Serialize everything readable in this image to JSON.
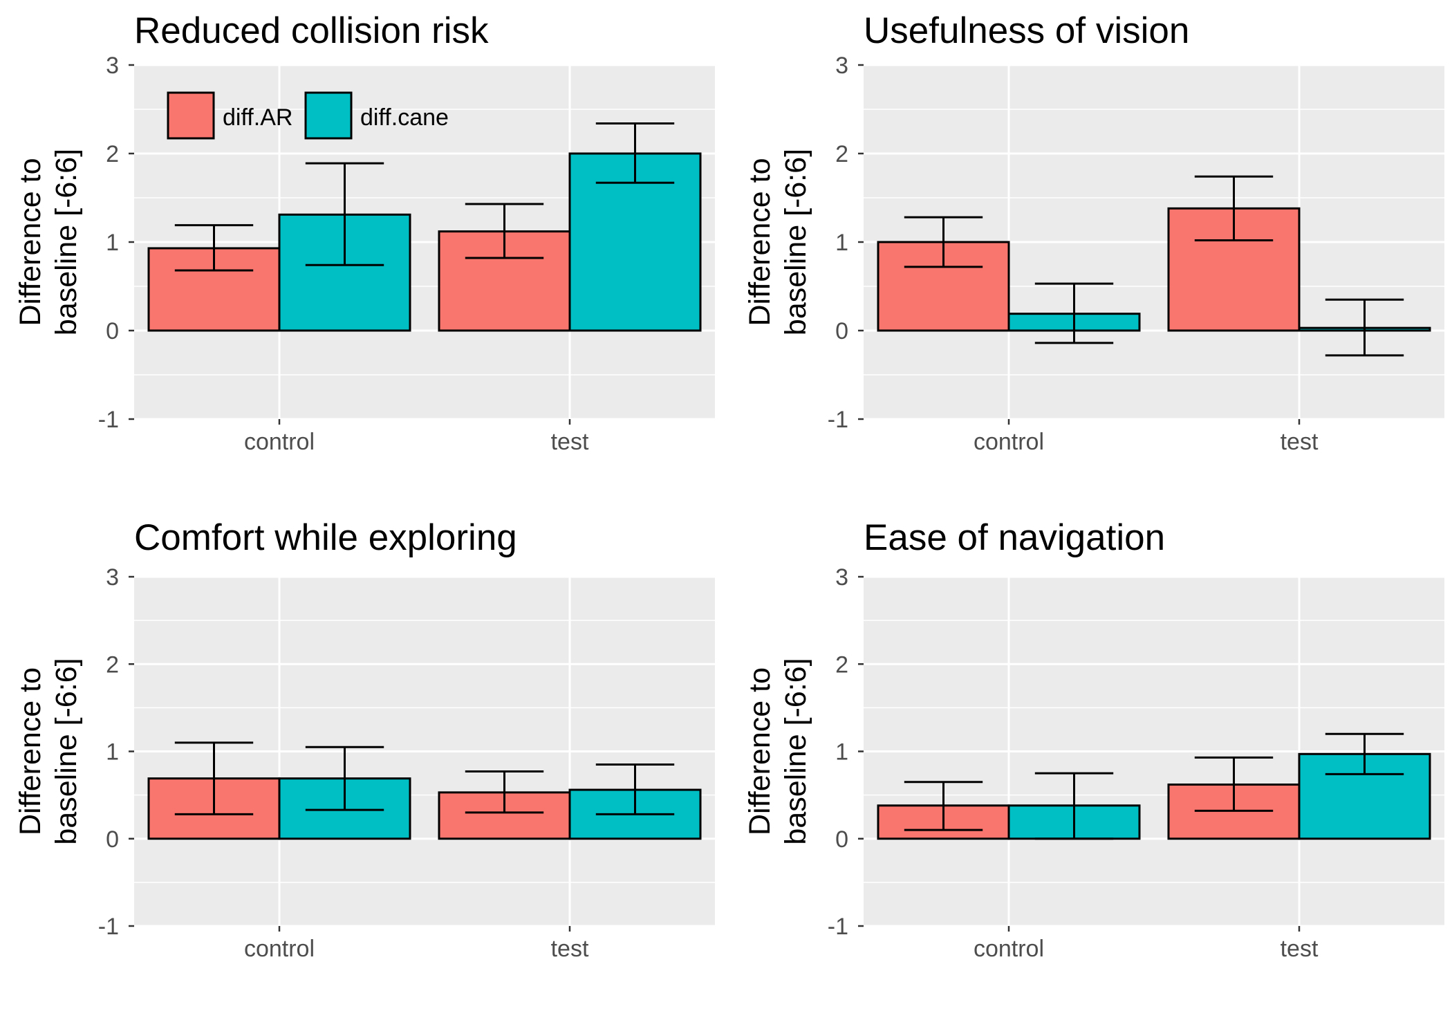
{
  "chart_data": [
    {
      "type": "bar",
      "title": "Reduced collision risk",
      "ylabel": "Difference to\nbaseline [-6:6]",
      "xlabel": "",
      "categories": [
        "control",
        "test"
      ],
      "ylim": [
        -1,
        3
      ],
      "yticks": [
        -1,
        0,
        1,
        2,
        3
      ],
      "series": [
        {
          "name": "diff.AR",
          "values": [
            0.93,
            1.12
          ],
          "err_low": [
            0.68,
            0.82
          ],
          "err_high": [
            1.19,
            1.43
          ]
        },
        {
          "name": "diff.cane",
          "values": [
            1.31,
            2.0
          ],
          "err_low": [
            0.74,
            1.67
          ],
          "err_high": [
            1.89,
            2.34
          ]
        }
      ],
      "legend": "top-left",
      "grid": true
    },
    {
      "type": "bar",
      "title": "Usefulness of vision",
      "ylabel": "Difference to\nbaseline [-6:6]",
      "xlabel": "",
      "categories": [
        "control",
        "test"
      ],
      "ylim": [
        -1,
        3
      ],
      "yticks": [
        -1,
        0,
        1,
        2,
        3
      ],
      "series": [
        {
          "name": "diff.AR",
          "values": [
            1.0,
            1.38
          ],
          "err_low": [
            0.72,
            1.02
          ],
          "err_high": [
            1.28,
            1.74
          ]
        },
        {
          "name": "diff.cane",
          "values": [
            0.19,
            0.03
          ],
          "err_low": [
            -0.14,
            -0.28
          ],
          "err_high": [
            0.53,
            0.35
          ]
        }
      ],
      "grid": true
    },
    {
      "type": "bar",
      "title": "Comfort while exploring",
      "ylabel": "Difference to\nbaseline [-6:6]",
      "xlabel": "",
      "categories": [
        "control",
        "test"
      ],
      "ylim": [
        -1,
        3
      ],
      "yticks": [
        -1,
        0,
        1,
        2,
        3
      ],
      "series": [
        {
          "name": "diff.AR",
          "values": [
            0.69,
            0.53
          ],
          "err_low": [
            0.28,
            0.3
          ],
          "err_high": [
            1.1,
            0.77
          ]
        },
        {
          "name": "diff.cane",
          "values": [
            0.69,
            0.56
          ],
          "err_low": [
            0.33,
            0.28
          ],
          "err_high": [
            1.05,
            0.85
          ]
        }
      ],
      "grid": true
    },
    {
      "type": "bar",
      "title": "Ease of navigation",
      "ylabel": "Difference to\nbaseline [-6:6]",
      "xlabel": "",
      "categories": [
        "control",
        "test"
      ],
      "ylim": [
        -1,
        3
      ],
      "yticks": [
        -1,
        0,
        1,
        2,
        3
      ],
      "series": [
        {
          "name": "diff.AR",
          "values": [
            0.38,
            0.62
          ],
          "err_low": [
            0.1,
            0.32
          ],
          "err_high": [
            0.65,
            0.93
          ]
        },
        {
          "name": "diff.cane",
          "values": [
            0.38,
            0.97
          ],
          "err_low": [
            0.0,
            0.74
          ],
          "err_high": [
            0.75,
            1.2
          ]
        }
      ],
      "grid": true
    }
  ],
  "colors": {
    "diff.AR": "#F8766D",
    "diff.cane": "#00BFC4",
    "panel_background": "#EBEBEB",
    "gridline": "#FFFFFF"
  }
}
